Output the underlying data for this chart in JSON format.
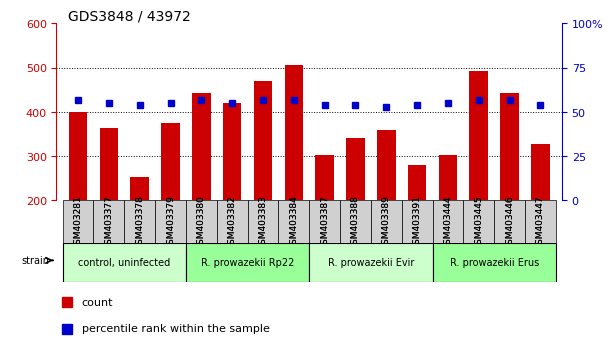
{
  "title": "GDS3848 / 43972",
  "samples": [
    "GSM403281",
    "GSM403377",
    "GSM403378",
    "GSM403379",
    "GSM403380",
    "GSM403382",
    "GSM403383",
    "GSM403384",
    "GSM403387",
    "GSM403388",
    "GSM403389",
    "GSM403391",
    "GSM403444",
    "GSM403445",
    "GSM403446",
    "GSM403447"
  ],
  "counts": [
    400,
    363,
    253,
    375,
    443,
    420,
    470,
    507,
    302,
    340,
    358,
    280,
    303,
    492,
    443,
    327
  ],
  "percentile_ranks": [
    57,
    55,
    54,
    55,
    57,
    55,
    57,
    57,
    54,
    54,
    53,
    54,
    55,
    57,
    57,
    54
  ],
  "groups": [
    {
      "label": "control, uninfected",
      "start": 0,
      "end": 3,
      "color": "#ccffcc"
    },
    {
      "label": "R. prowazekii Rp22",
      "start": 4,
      "end": 7,
      "color": "#99ff99"
    },
    {
      "label": "R. prowazekii Evir",
      "start": 8,
      "end": 11,
      "color": "#ccffcc"
    },
    {
      "label": "R. prowazekii Erus",
      "start": 12,
      "end": 15,
      "color": "#99ff99"
    }
  ],
  "ylim_left": [
    200,
    600
  ],
  "ylim_right": [
    0,
    100
  ],
  "bar_color": "#cc0000",
  "dot_color": "#0000cc",
  "grid_color": "#000000",
  "background_color": "#ffffff",
  "plot_bg_color": "#ffffff",
  "tick_color_left": "#cc0000",
  "tick_color_right": "#0000cc",
  "ylabel_left": "",
  "ylabel_right": "",
  "legend_count_label": "count",
  "legend_percentile_label": "percentile rank within the sample"
}
